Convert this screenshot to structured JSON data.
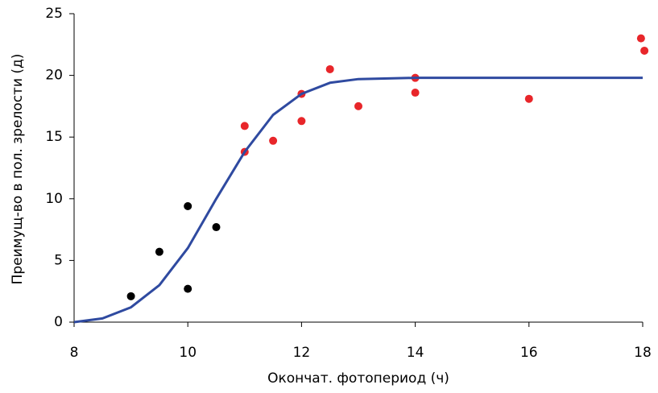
{
  "chart_data": {
    "type": "scatter",
    "xlabel": "Окончат. фотопериод (ч)",
    "ylabel": "Преимущ-во в пол. зрелости (д)",
    "xlim": [
      8,
      18
    ],
    "xticks": [
      8,
      10,
      12,
      14,
      16,
      18
    ],
    "ylim": [
      0,
      25
    ],
    "yticks": [
      0,
      5,
      10,
      15,
      20,
      25
    ],
    "series": [
      {
        "mode": "markers",
        "color": "#000000",
        "x": [
          9,
          9.5,
          10,
          10,
          10.5
        ],
        "values": [
          2.1,
          5.7,
          9.4,
          2.7,
          7.7
        ]
      },
      {
        "mode": "markers",
        "color": "#e8262a",
        "x": [
          11,
          11,
          11.5,
          12,
          12,
          12.5,
          13,
          14,
          14,
          16,
          17.97,
          18.03
        ],
        "values": [
          15.9,
          13.8,
          14.7,
          18.5,
          16.3,
          20.5,
          17.5,
          19.8,
          18.6,
          18.1,
          23.0,
          22.0
        ]
      },
      {
        "mode": "lines",
        "color": "#2f4aa0",
        "x": [
          8,
          8.5,
          9,
          9.5,
          10,
          10.5,
          11,
          11.5,
          12,
          12.5,
          13,
          14,
          16,
          18
        ],
        "values": [
          0,
          0.3,
          1.2,
          3,
          6,
          10,
          13.8,
          16.8,
          18.5,
          19.4,
          19.7,
          19.8,
          19.8,
          19.8
        ]
      }
    ]
  }
}
